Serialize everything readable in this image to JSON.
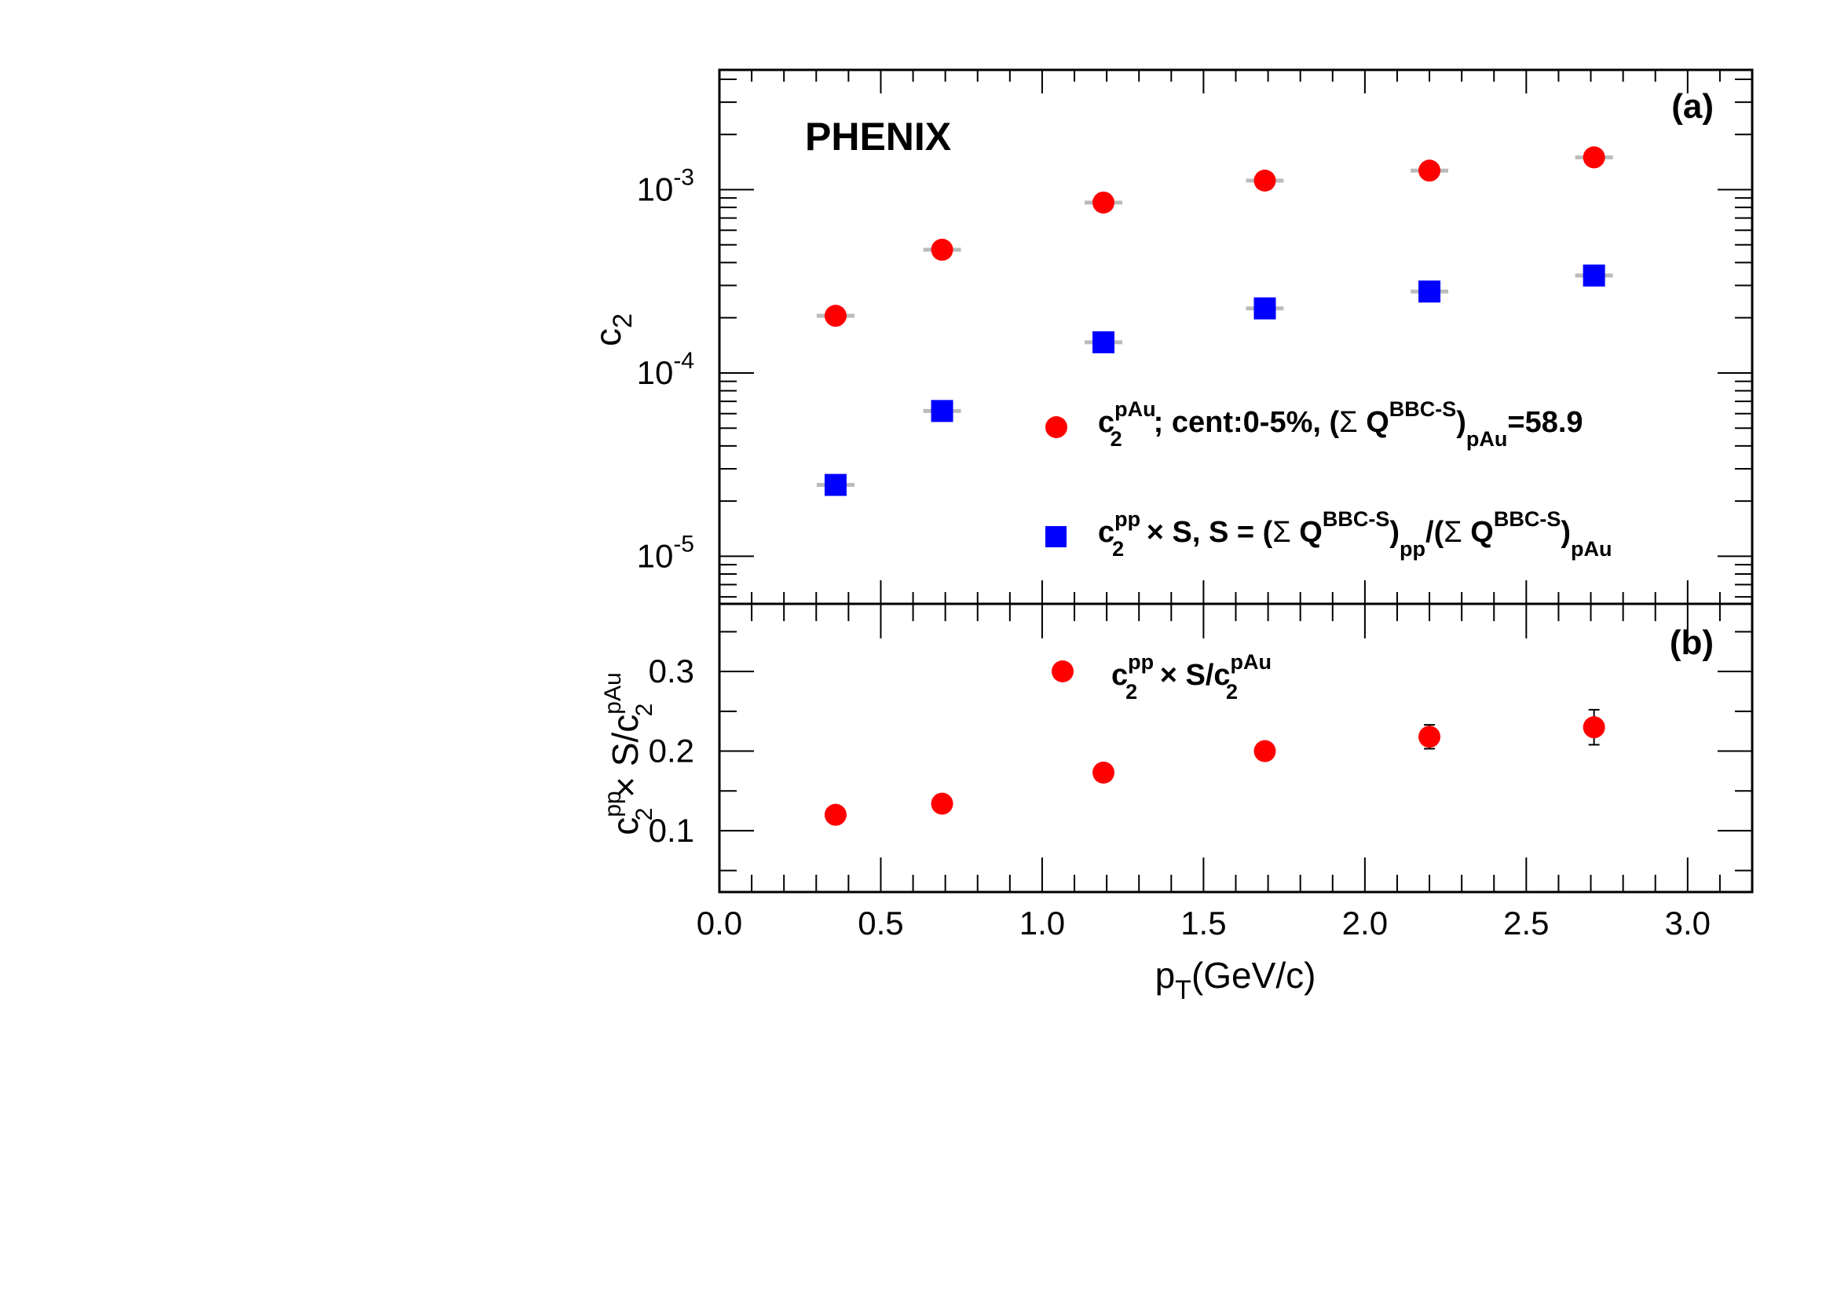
{
  "chart_data": [
    {
      "panel": "(a)",
      "type": "scatter",
      "experiment_label": "PHENIX",
      "ylabel": "c",
      "ylabel_sub": "2",
      "yscale": "log",
      "ylim": [
        5.5e-06,
        0.0045
      ],
      "xlim": [
        0.0,
        3.2
      ],
      "y_tick_labels": [
        {
          "value": 1e-05,
          "base": "10",
          "exp": "-5"
        },
        {
          "value": 0.0001,
          "base": "10",
          "exp": "-4"
        },
        {
          "value": 0.001,
          "base": "10",
          "exp": "-3"
        }
      ],
      "series": [
        {
          "name": "c2 pAu",
          "color": "#ff0000",
          "marker": "circle",
          "x": [
            0.36,
            0.69,
            1.19,
            1.69,
            2.2,
            2.71
          ],
          "y": [
            0.000205,
            0.00047,
            0.00085,
            0.00112,
            0.00127,
            0.0015
          ],
          "legend": {
            "c": "c",
            "sub": "2",
            "sup": "pAu",
            "text1": "; cent:0-5%, (",
            "sigma": "Σ",
            "q": " Q",
            "q_sup": "BBC-S",
            "close": ")",
            "q_sub": "pAu",
            "value": "=58.9"
          }
        },
        {
          "name": "c2 pp x S",
          "color": "#0000ff",
          "marker": "square",
          "x": [
            0.36,
            0.69,
            1.19,
            1.69,
            2.2,
            2.71
          ],
          "y": [
            2.45e-05,
            6.2e-05,
            0.000147,
            0.000225,
            0.000278,
            0.00034
          ],
          "legend": {
            "c": "c",
            "sub": "2",
            "sup": "pp",
            "times": " × S, S = (",
            "sigma1": "Σ",
            "q1": " Q",
            "q1_sup": "BBC-S",
            "close1": ")",
            "q1_sub": "pp",
            "slash": "/(",
            "sigma2": "Σ",
            "q2": " Q",
            "q2_sup": "BBC-S",
            "close2": ")",
            "q2_sub": "pAu"
          }
        }
      ]
    },
    {
      "panel": "(b)",
      "type": "scatter",
      "yscale": "linear",
      "ylim": [
        0.023,
        0.385
      ],
      "xlim": [
        0.0,
        3.2
      ],
      "xlabel": "p",
      "xlabel_sub": "T",
      "xlabel_rest": "(GeV/c)",
      "ylabel_parts": {
        "c1": "c",
        "sup1": "pp",
        "sub1": "2",
        "mid": " × S/c",
        "sup2": "pAu",
        "sub2": "2"
      },
      "x_ticks": [
        0.0,
        0.5,
        1.0,
        1.5,
        2.0,
        2.5,
        3.0
      ],
      "x_tick_labels": [
        "0.0",
        "0.5",
        "1.0",
        "1.5",
        "2.0",
        "2.5",
        "3.0"
      ],
      "y_ticks": [
        0.1,
        0.2,
        0.3
      ],
      "y_tick_labels": [
        "0.1",
        "0.2",
        "0.3"
      ],
      "series": [
        {
          "name": "ratio",
          "color": "#ff0000",
          "marker": "circle",
          "x": [
            0.36,
            0.69,
            1.19,
            1.69,
            2.2,
            2.71
          ],
          "y": [
            0.12,
            0.134,
            0.173,
            0.2,
            0.218,
            0.23
          ],
          "yerr": [
            0.0,
            0.0,
            0.0,
            0.0,
            0.015,
            0.022
          ],
          "legend": {
            "c": "c",
            "sub": "2",
            "sup": "pp",
            "mid": " × S/c",
            "sub2": "2",
            "sup2": "pAu"
          }
        }
      ]
    }
  ]
}
